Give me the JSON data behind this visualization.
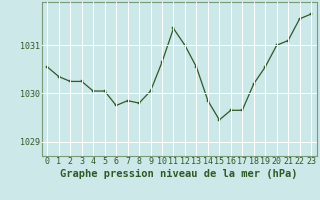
{
  "x": [
    0,
    1,
    2,
    3,
    4,
    5,
    6,
    7,
    8,
    9,
    10,
    11,
    12,
    13,
    14,
    15,
    16,
    17,
    18,
    19,
    20,
    21,
    22,
    23
  ],
  "y": [
    1030.55,
    1030.35,
    1030.25,
    1030.25,
    1030.05,
    1030.05,
    1029.75,
    1029.85,
    1029.8,
    1030.05,
    1030.65,
    1031.35,
    1031.0,
    1030.55,
    1029.85,
    1029.45,
    1029.65,
    1029.65,
    1030.2,
    1030.55,
    1031.0,
    1031.1,
    1031.55,
    1031.65
  ],
  "line_color": "#2d5a27",
  "marker_color": "#2d5a27",
  "bg_color": "#cce8e8",
  "grid_color": "#ffffff",
  "xlabel": "Graphe pression niveau de la mer (hPa)",
  "xlabel_fontsize": 7.5,
  "yticks": [
    1029,
    1030,
    1031
  ],
  "xticks": [
    0,
    1,
    2,
    3,
    4,
    5,
    6,
    7,
    8,
    9,
    10,
    11,
    12,
    13,
    14,
    15,
    16,
    17,
    18,
    19,
    20,
    21,
    22,
    23
  ],
  "ylim": [
    1028.7,
    1031.9
  ],
  "xlim": [
    -0.5,
    23.5
  ],
  "tick_fontsize": 6.0,
  "label_color": "#2d5a27",
  "spine_color": "#7a9a7a"
}
